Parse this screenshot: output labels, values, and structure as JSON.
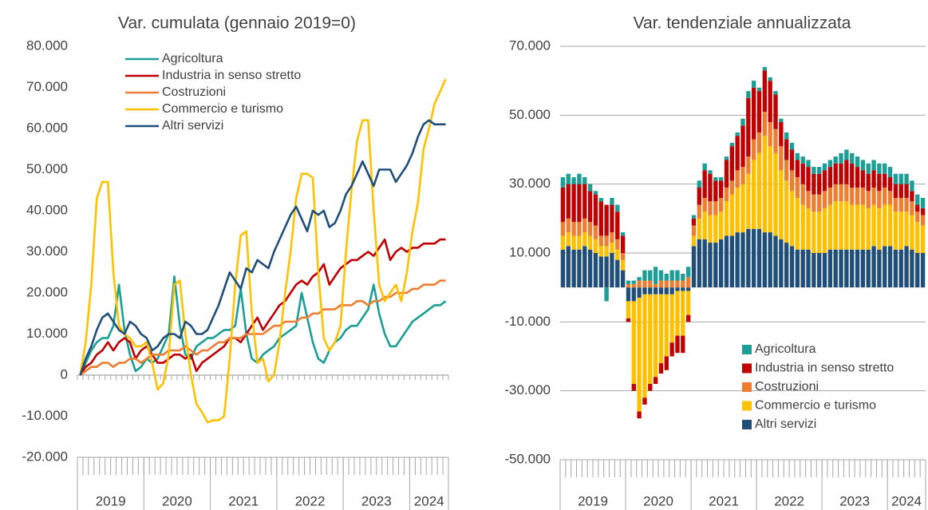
{
  "chart_data": [
    {
      "type": "line",
      "title": "Var. cumulata (gennaio 2019=0)",
      "categories": [
        null,
        null,
        null,
        null,
        null,
        null,
        null,
        null,
        null,
        null,
        null,
        null,
        null,
        null,
        null,
        null,
        null,
        null,
        null,
        null,
        null,
        null,
        null,
        null,
        null,
        null,
        null,
        null,
        null,
        null,
        null,
        null,
        null,
        null,
        null,
        null,
        null,
        null,
        null,
        null,
        null,
        null,
        null,
        null,
        null,
        null,
        null,
        null,
        null,
        null,
        null,
        null,
        null,
        null,
        null,
        null,
        null,
        null,
        null,
        null,
        null,
        null,
        null,
        null,
        null,
        null,
        null
      ],
      "x_groups": [
        "2019",
        "2020",
        "2021",
        "2022",
        "2023",
        "2024"
      ],
      "ylim": [
        -20000,
        80000
      ],
      "yticks": [
        {
          "value": -20000,
          "label": "-20.000"
        },
        {
          "value": -10000,
          "label": "-10.000"
        },
        0,
        {
          "value": 10000,
          "label": "10.000"
        },
        {
          "value": 20000,
          "label": "20.000"
        },
        {
          "value": 30000,
          "label": "30.000"
        },
        {
          "value": 40000,
          "label": "40.000"
        },
        {
          "value": 50000,
          "label": "50.000"
        },
        {
          "value": 60000,
          "label": "60.000"
        },
        {
          "value": 70000,
          "label": "70.000"
        },
        {
          "value": 80000,
          "label": "80.000"
        }
      ],
      "grid": false,
      "legend": "top-left",
      "series": [
        {
          "name": "Agricoltura",
          "color": "#1a9e96",
          "values": [
            0,
            3000,
            6000,
            8000,
            9000,
            9000,
            12000,
            22000,
            11000,
            5000,
            1000,
            2000,
            4000,
            3000,
            4000,
            7000,
            10000,
            24000,
            12000,
            5000,
            4000,
            7000,
            8000,
            9000,
            9000,
            10000,
            11000,
            11000,
            12000,
            21000,
            10000,
            4000,
            3000,
            5000,
            6000,
            7000,
            9000,
            10000,
            11000,
            12000,
            20000,
            14000,
            8000,
            4000,
            3000,
            6000,
            8000,
            9000,
            11000,
            12000,
            12000,
            14000,
            16000,
            22000,
            15000,
            10000,
            7000,
            7000,
            9000,
            11000,
            13000,
            14000,
            15000,
            16000,
            17000,
            17000,
            18000
          ]
        },
        {
          "name": "Industria in senso stretto",
          "color": "#c00000",
          "values": [
            0,
            2000,
            3000,
            5000,
            6000,
            8000,
            6000,
            8000,
            9000,
            8000,
            4000,
            6000,
            7000,
            5000,
            3000,
            3000,
            4000,
            5000,
            5000,
            4000,
            5000,
            1000,
            3000,
            4000,
            5000,
            6000,
            7000,
            9000,
            9000,
            8000,
            10000,
            12000,
            14000,
            11000,
            13000,
            15000,
            17000,
            18000,
            20000,
            22000,
            23000,
            22000,
            24000,
            25000,
            27000,
            22000,
            24000,
            26000,
            27000,
            28000,
            28000,
            29000,
            30000,
            29000,
            31000,
            33000,
            28000,
            30000,
            31000,
            30000,
            31000,
            31000,
            32000,
            32000,
            32000,
            33000,
            33000
          ]
        },
        {
          "name": "Costruzioni",
          "color": "#ed7d31",
          "values": [
            0,
            1000,
            2000,
            2000,
            3000,
            3000,
            2000,
            3000,
            3000,
            4000,
            4000,
            3000,
            4000,
            5000,
            5000,
            5000,
            6000,
            6000,
            6000,
            7000,
            6000,
            5000,
            6000,
            6000,
            7000,
            8000,
            8000,
            9000,
            9000,
            9000,
            10000,
            10000,
            10000,
            10000,
            11000,
            12000,
            12000,
            13000,
            13000,
            13000,
            14000,
            14000,
            15000,
            15000,
            16000,
            16000,
            16000,
            17000,
            17000,
            17000,
            18000,
            18000,
            17000,
            18000,
            18000,
            19000,
            19000,
            20000,
            20000,
            20000,
            21000,
            21000,
            22000,
            22000,
            22000,
            23000,
            23000
          ]
        },
        {
          "name": "Commercio e turismo",
          "color": "#ffc000",
          "values": [
            0,
            8000,
            22000,
            43000,
            47000,
            47000,
            25000,
            12000,
            10000,
            9000,
            7000,
            7000,
            8000,
            3000,
            -3500,
            -2000,
            5000,
            22000,
            23000,
            10000,
            0,
            -7000,
            -9000,
            -11500,
            -11000,
            -11000,
            -10000,
            4000,
            22000,
            34000,
            35000,
            15000,
            3000,
            4000,
            -1500,
            0,
            8000,
            20000,
            30000,
            43000,
            49000,
            49000,
            48000,
            25000,
            9000,
            6000,
            8000,
            12000,
            30000,
            45000,
            57000,
            62000,
            62000,
            40000,
            22000,
            18000,
            20000,
            22000,
            18000,
            25000,
            35000,
            42000,
            55000,
            60000,
            66000,
            69000,
            72000
          ]
        },
        {
          "name": "Altri servizi",
          "color": "#1f4e79",
          "values": [
            0,
            4000,
            7000,
            11000,
            14000,
            15000,
            13000,
            11000,
            10000,
            13000,
            12000,
            10000,
            9000,
            6000,
            7000,
            9000,
            10000,
            10000,
            9000,
            13000,
            12000,
            10000,
            10000,
            11000,
            14000,
            17000,
            21000,
            25000,
            23000,
            21000,
            26000,
            25000,
            28000,
            27000,
            26000,
            30000,
            33000,
            36000,
            39000,
            41000,
            38000,
            35000,
            40000,
            39000,
            40000,
            36000,
            37000,
            40000,
            44000,
            46000,
            49000,
            52000,
            49000,
            46000,
            50000,
            50000,
            50000,
            47000,
            49000,
            51000,
            54000,
            58000,
            61000,
            62000,
            61000,
            61000,
            61000
          ]
        }
      ]
    },
    {
      "type": "stacked_bar",
      "title": "Var. tendenziale annualizzata",
      "categories": [
        null,
        null,
        null,
        null,
        null,
        null,
        null,
        null,
        null,
        null,
        null,
        null,
        null,
        null,
        null,
        null,
        null,
        null,
        null,
        null,
        null,
        null,
        null,
        null,
        null,
        null,
        null,
        null,
        null,
        null,
        null,
        null,
        null,
        null,
        null,
        null,
        null,
        null,
        null,
        null,
        null,
        null,
        null,
        null,
        null,
        null,
        null,
        null,
        null,
        null,
        null,
        null,
        null,
        null,
        null,
        null,
        null,
        null,
        null,
        null,
        null,
        null,
        null,
        null,
        null,
        null,
        null
      ],
      "x_groups": [
        "2019",
        "2020",
        "2021",
        "2022",
        "2023",
        "2024"
      ],
      "ylim": [
        -50000,
        70000
      ],
      "yticks": [
        {
          "value": -50000,
          "label": "-50.000"
        },
        {
          "value": -30000,
          "label": "-30.000"
        },
        {
          "value": -10000,
          "label": "-10.000"
        },
        {
          "value": 10000,
          "label": "10.000"
        },
        {
          "value": 30000,
          "label": "30.000"
        },
        {
          "value": 50000,
          "label": "50.000"
        },
        {
          "value": 70000,
          "label": "70.000"
        }
      ],
      "grid": true,
      "legend": "bottom-right",
      "series": [
        {
          "name": "Agricoltura",
          "color": "#1a9e96",
          "values": [
            3000,
            3000,
            2000,
            3000,
            2000,
            2000,
            1000,
            1000,
            -4000,
            2000,
            2000,
            1000,
            1000,
            1000,
            1000,
            3000,
            3000,
            5000,
            3000,
            2000,
            3000,
            3000,
            2000,
            3000,
            1000,
            2000,
            2000,
            1000,
            1000,
            1000,
            1000,
            1000,
            1000,
            2000,
            2000,
            2000,
            1000,
            1000,
            1000,
            1000,
            1000,
            2000,
            2000,
            2000,
            2000,
            2000,
            2000,
            2000,
            2000,
            2000,
            2000,
            3000,
            3000,
            3000,
            3000,
            3000,
            3000,
            3000,
            3000,
            3000,
            3000,
            3000,
            3000,
            3000,
            3000,
            3000,
            3000
          ]
        },
        {
          "name": "Industria in senso stretto",
          "color": "#c00000",
          "values": [
            10000,
            10000,
            11000,
            11000,
            10000,
            9000,
            9000,
            10000,
            9000,
            8000,
            8000,
            5000,
            -1000,
            -2000,
            -2000,
            -2000,
            -2000,
            -2000,
            -3000,
            -4000,
            -4000,
            -5000,
            -5000,
            -2000,
            2000,
            5000,
            8000,
            8000,
            6000,
            5000,
            8000,
            10000,
            10000,
            12000,
            17000,
            15000,
            12000,
            12000,
            12000,
            10000,
            7000,
            6000,
            6000,
            5000,
            6000,
            7000,
            6000,
            6000,
            6000,
            6000,
            6000,
            6000,
            7000,
            7000,
            6000,
            5000,
            5000,
            5000,
            5000,
            4000,
            4000,
            4000,
            4000,
            4000,
            3000,
            2000,
            2000
          ]
        },
        {
          "name": "Costruzioni",
          "color": "#ed7d31",
          "values": [
            4000,
            4000,
            4000,
            4000,
            4000,
            4000,
            4000,
            3000,
            3000,
            3000,
            3000,
            2000,
            1000,
            1000,
            2000,
            2000,
            2000,
            1000,
            2000,
            2000,
            2000,
            2000,
            2000,
            3000,
            3000,
            4000,
            4000,
            4000,
            4000,
            4000,
            4000,
            4000,
            5000,
            5000,
            5000,
            6000,
            6000,
            7000,
            7000,
            7000,
            7000,
            6000,
            6000,
            6000,
            6000,
            5000,
            5000,
            5000,
            5000,
            5000,
            5000,
            5000,
            5000,
            5000,
            5000,
            5000,
            5000,
            5000,
            5000,
            5000,
            4000,
            4000,
            4000,
            4000,
            4000,
            3000,
            3000
          ]
        },
        {
          "name": "Commercio e turismo",
          "color": "#ffc000",
          "values": [
            4000,
            4000,
            4000,
            4000,
            4000,
            4000,
            4000,
            3000,
            3000,
            3000,
            3000,
            3000,
            -5000,
            -24000,
            -33000,
            -30000,
            -26000,
            -24000,
            -20000,
            -18000,
            -14000,
            -13000,
            -13000,
            -7000,
            3000,
            6000,
            8000,
            8000,
            8000,
            8000,
            10000,
            12000,
            13000,
            14000,
            16000,
            20000,
            22000,
            28000,
            25000,
            24000,
            20000,
            18000,
            16000,
            15000,
            13000,
            12000,
            12000,
            12000,
            13000,
            13000,
            14000,
            14000,
            14000,
            13000,
            13000,
            13000,
            12000,
            12000,
            12000,
            12000,
            12000,
            11000,
            11000,
            10000,
            10000,
            9000,
            8000
          ]
        },
        {
          "name": "Altri servizi",
          "color": "#1f4e79",
          "values": [
            11000,
            12000,
            11000,
            11000,
            12000,
            11000,
            10000,
            9000,
            9000,
            10000,
            8000,
            5000,
            -4000,
            -4000,
            -3000,
            -2000,
            -2000,
            -2000,
            -2000,
            -2000,
            -2000,
            -1000,
            -1000,
            -1000,
            12000,
            14000,
            14000,
            13000,
            13000,
            14000,
            15000,
            15000,
            16000,
            16000,
            17000,
            17000,
            17000,
            16000,
            16000,
            15000,
            14000,
            13000,
            12000,
            11000,
            11000,
            11000,
            10000,
            10000,
            10000,
            11000,
            11000,
            11000,
            11000,
            11000,
            11000,
            11000,
            11000,
            12000,
            11000,
            12000,
            12000,
            11000,
            11000,
            12000,
            11000,
            10000,
            10000
          ]
        }
      ]
    }
  ]
}
